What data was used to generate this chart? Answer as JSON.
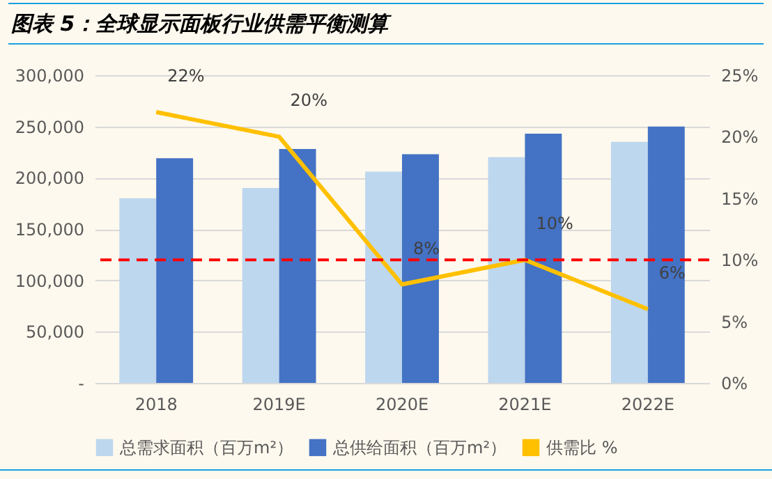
{
  "chart_data": {
    "type": "bar",
    "title": "图表 5：全球显示面板行业供需平衡测算",
    "categories": [
      "2018",
      "2019E",
      "2020E",
      "2021E",
      "2022E"
    ],
    "series": [
      {
        "name": "总需求面积（百万m²）",
        "color": "#bdd7ee",
        "values": [
          180000,
          190000,
          206000,
          220000,
          235000
        ]
      },
      {
        "name": "总供给面积（百万m²）",
        "color": "#4472c4",
        "values": [
          219000,
          228000,
          223000,
          243000,
          250000
        ]
      },
      {
        "name": "供需比 %",
        "color": "#ffc000",
        "type": "line",
        "axis": "y2",
        "values": [
          22,
          20,
          8,
          10,
          6
        ],
        "value_labels": [
          "22%",
          "20%",
          "8%",
          "10%",
          "6%"
        ]
      }
    ],
    "ylim": [
      0,
      300000
    ],
    "yticks": [
      {
        "value": 0,
        "label": "-"
      },
      {
        "value": 50000,
        "label": "50,000"
      },
      {
        "value": 100000,
        "label": "100,000"
      },
      {
        "value": 150000,
        "label": "150,000"
      },
      {
        "value": 200000,
        "label": "200,000"
      },
      {
        "value": 250000,
        "label": "250,000"
      },
      {
        "value": 300000,
        "label": "300,000"
      }
    ],
    "y2lim": [
      0,
      25
    ],
    "y2ticks": [
      {
        "value": 0,
        "label": "0%"
      },
      {
        "value": 5,
        "label": "5%"
      },
      {
        "value": 10,
        "label": "10%"
      },
      {
        "value": 15,
        "label": "15%"
      },
      {
        "value": 20,
        "label": "20%"
      },
      {
        "value": 25,
        "label": "25%"
      }
    ],
    "ref_lines": [
      {
        "axis": "y2",
        "value": 10,
        "color": "#ff0000",
        "line_style": "dashed"
      }
    ],
    "grid": "y",
    "legend": "bottom"
  }
}
